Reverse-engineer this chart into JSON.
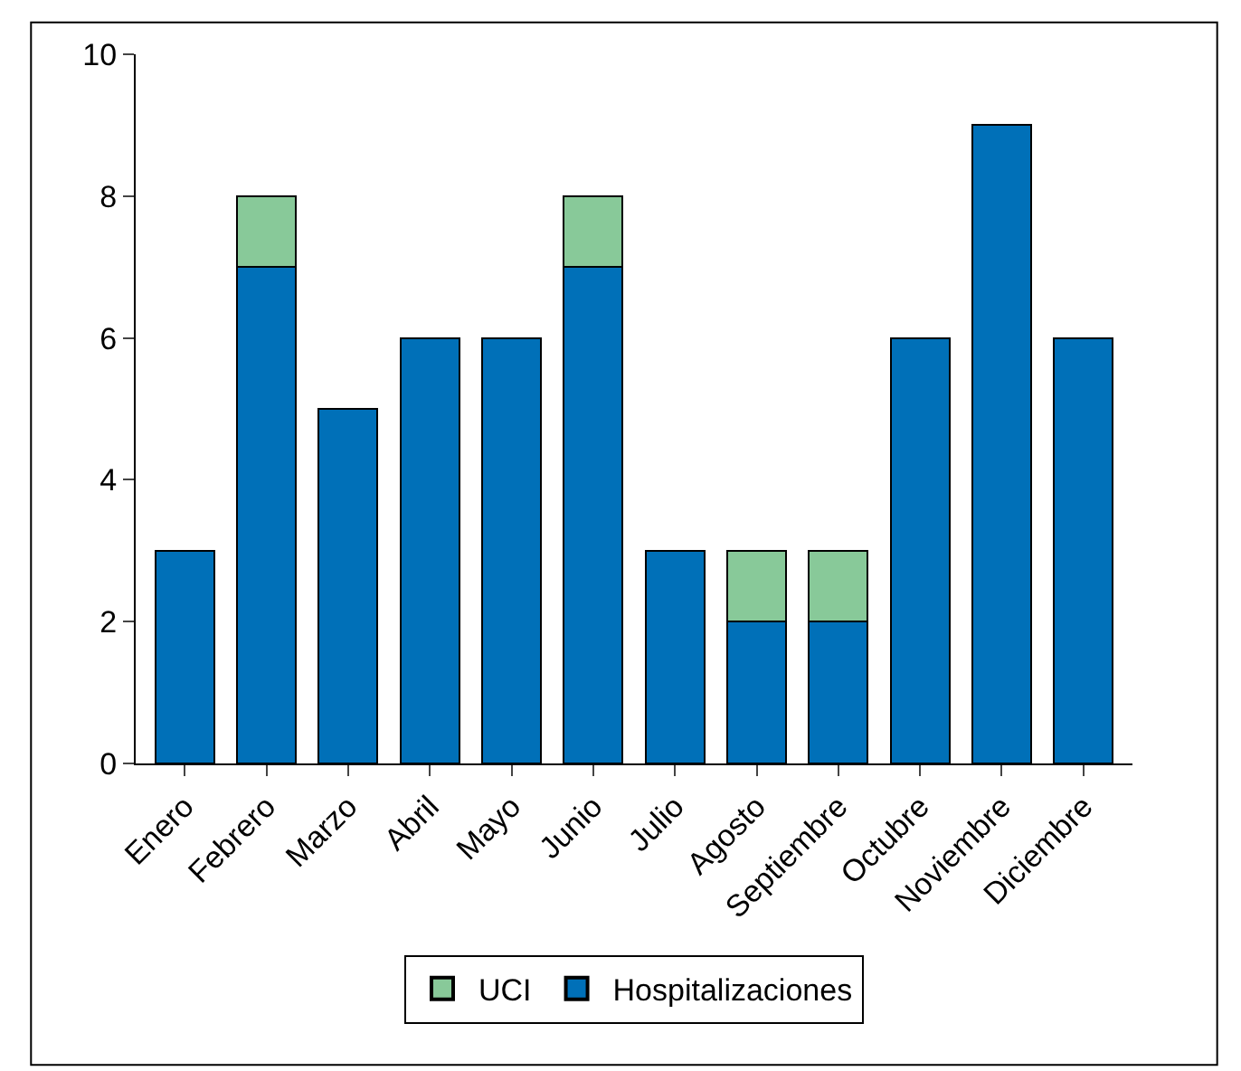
{
  "chart_data": {
    "type": "bar",
    "stacked": true,
    "categories": [
      "Enero",
      "Febrero",
      "Marzo",
      "Abril",
      "Mayo",
      "Junio",
      "Julio",
      "Agosto",
      "Septiembre",
      "Octubre",
      "Noviembre",
      "Diciembre"
    ],
    "series": [
      {
        "name": "Hospitalizaciones",
        "color": "#0070b8",
        "values": [
          3,
          7,
          5,
          6,
          6,
          7,
          3,
          2,
          2,
          6,
          9,
          6
        ]
      },
      {
        "name": "UCI",
        "color": "#88c999",
        "values": [
          null,
          1,
          null,
          null,
          null,
          1,
          null,
          1,
          1,
          null,
          null,
          null
        ]
      }
    ],
    "ylim": [
      0,
      10
    ],
    "yticks": [
      0,
      2,
      4,
      6,
      8,
      10
    ],
    "legend": "bottom"
  }
}
